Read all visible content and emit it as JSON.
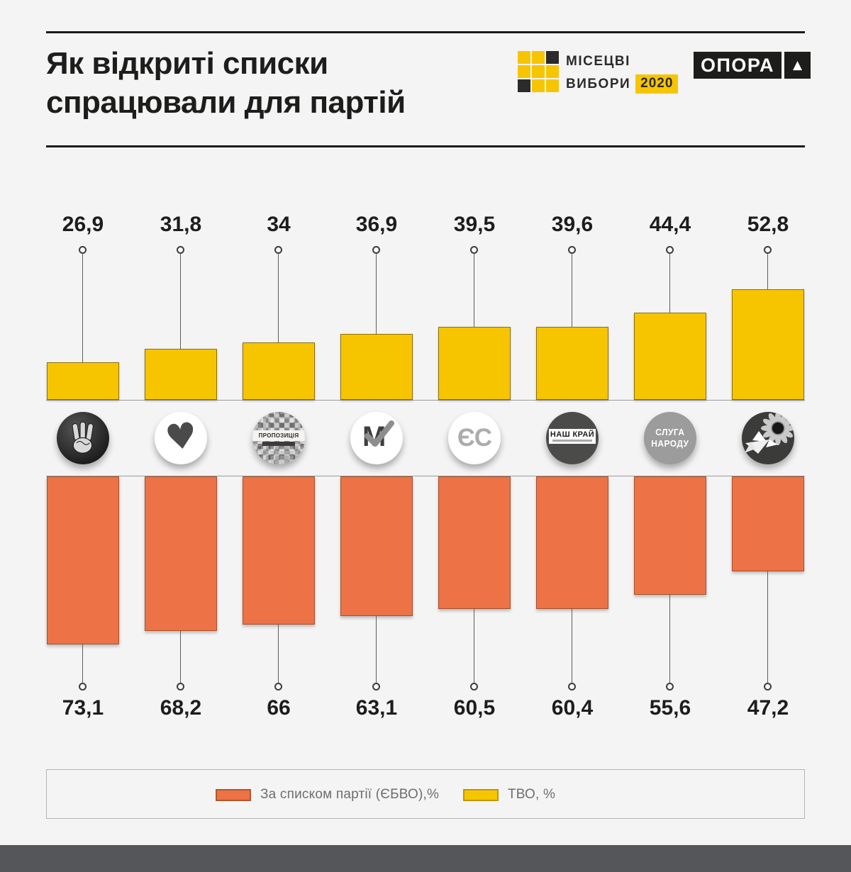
{
  "page": {
    "background": "#F4F4F5",
    "footer_color": "#55565A"
  },
  "header": {
    "title_line1": "Як відкриті списки",
    "title_line2": "спрацювали для партій",
    "elections_badge": {
      "line1": "МІСЕЦВІ",
      "line2": "ВИБОРИ",
      "year": "2020",
      "yellow": "#F6C500",
      "black": "#2B2B2B",
      "grid_pattern": [
        "y",
        "y",
        "k",
        "y",
        "y",
        "y",
        "k",
        "y",
        "y"
      ]
    },
    "opora_badge": {
      "text": "ОПОРА",
      "triangle": "▲"
    }
  },
  "chart_data": {
    "type": "bar",
    "subtype": "diverging-vertical",
    "orientation": "mirrored: yellow series grows upward, orange series grows downward, party logos between",
    "categories": [
      "hand",
      "heart",
      "propozytsiya",
      "m-check",
      "yes",
      "nash-kray",
      "sluha-narodu",
      "dove-sunflower"
    ],
    "category_logos": [
      "three-finger-hand-icon",
      "brush-heart-icon",
      "pixel-mosaic-badge",
      "m-checkmark-icon",
      "yes-letters-badge",
      "nash-kray-badge",
      "sluha-narodu-badge",
      "sunflower-dove-icon"
    ],
    "series": [
      {
        "name": "ТВО, %",
        "direction": "up",
        "color": "#F7C500",
        "values": [
          26.9,
          31.8,
          34,
          36.9,
          39.5,
          39.6,
          44.4,
          52.8
        ],
        "labels": [
          "26,9",
          "31,8",
          "34",
          "36,9",
          "39,5",
          "39,6",
          "44,4",
          "52,8"
        ]
      },
      {
        "name": "За списком партії (ЄБВО),%",
        "direction": "down",
        "color": "#ED7246",
        "values": [
          73.1,
          68.2,
          66,
          63.1,
          60.5,
          60.4,
          55.6,
          47.2
        ],
        "labels": [
          "73,1",
          "68,2",
          "66",
          "63,1",
          "60,5",
          "60,4",
          "55,6",
          "47,2"
        ]
      }
    ],
    "logo_texts": {
      "propozytsiya": "ПРОПОЗИЦІЯ",
      "m_letter": "М",
      "yes": "ЄС",
      "nash_kray": "НАШ КРАЙ",
      "sluha_line1": "СЛУГА",
      "sluha_line2": "НАРОДУ"
    },
    "legend_position": "bottom",
    "grid": false
  },
  "legend": {
    "items": [
      {
        "label": "За списком партії (ЄБВО),%",
        "color": "#ED7246"
      },
      {
        "label": "ТВО, %",
        "color": "#F7C500"
      }
    ]
  }
}
